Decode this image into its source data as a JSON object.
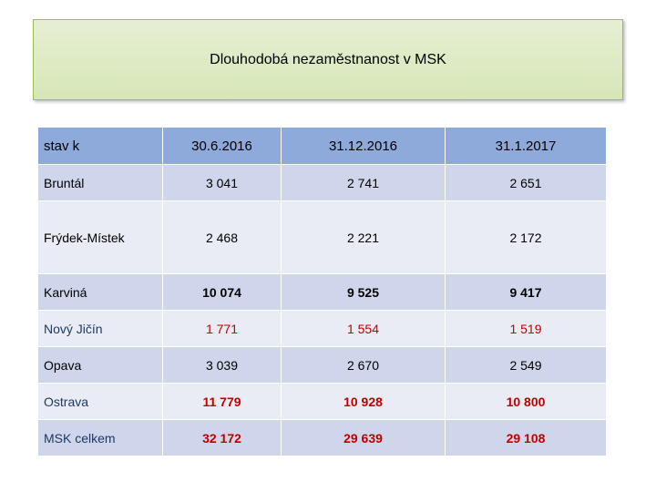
{
  "title": "Dlouhodobá nezaměstnanost v MSK",
  "table": {
    "columns": [
      "stav k",
      "30.6.2016",
      "31.12.2016",
      "31.1.2017"
    ],
    "rows": [
      {
        "label": "Bruntál",
        "values": [
          "3 041",
          "2 741",
          "2 651"
        ]
      },
      {
        "label": "Frýdek-Místek",
        "values": [
          "2 468",
          "2 221",
          "2 172"
        ]
      },
      {
        "label": "Karviná",
        "values": [
          "10 074",
          "9 525",
          "9 417"
        ]
      },
      {
        "label": "Nový Jičín",
        "values": [
          "1 771",
          "1 554",
          "1 519"
        ]
      },
      {
        "label": "Opava",
        "values": [
          "3 039",
          "2 670",
          "2 549"
        ]
      },
      {
        "label": "Ostrava",
        "values": [
          "11 779",
          "10 928",
          "10 800"
        ]
      },
      {
        "label": "MSK celkem",
        "values": [
          "32 172",
          "29 639",
          "29 108"
        ]
      }
    ]
  },
  "colors": {
    "header_bg": "#8eaadb",
    "row_odd_bg": "#cfd5ea",
    "row_even_bg": "#e9ebf5",
    "title_bg": "#d7e6b8",
    "highlight_red": "#c00000",
    "label_blue": "#1f3864"
  }
}
